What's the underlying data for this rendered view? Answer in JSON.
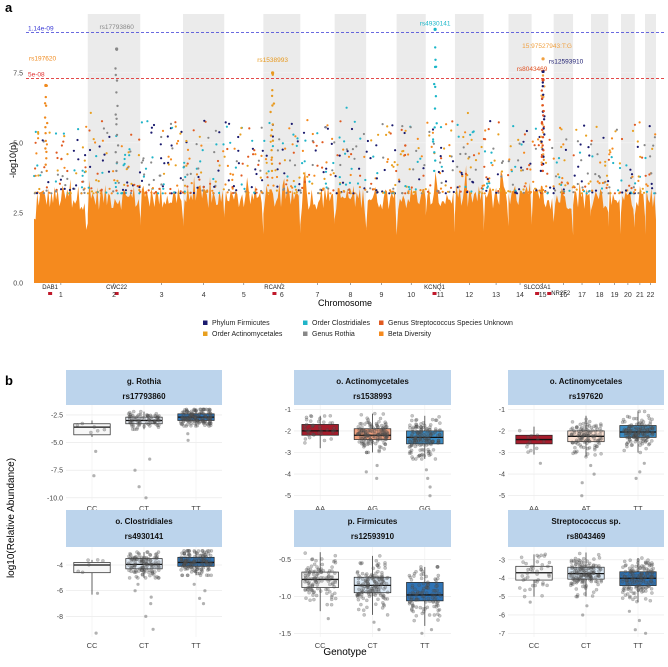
{
  "panel_a": {
    "label": "a",
    "chart_data": {
      "type": "scatter",
      "subtype": "manhattan",
      "xlabel": "Chromosome",
      "ylabel": "-log10(p)",
      "ylim": [
        0,
        9.6
      ],
      "yticks": [
        0.0,
        2.5,
        5.0,
        7.5
      ],
      "ytick_labels": [
        "0.0",
        "2.5",
        "5.0",
        "7.5"
      ],
      "chromosomes": [
        "1",
        "2",
        "3",
        "4",
        "5",
        "6",
        "7",
        "8",
        "9",
        "10",
        "11",
        "12",
        "13",
        "14",
        "15",
        "16",
        "17",
        "18",
        "19",
        "20",
        "21",
        "22"
      ],
      "thresholds": [
        {
          "label": "1.14e-09",
          "value": 8.94,
          "color": "#3a3ad6"
        },
        {
          "label": "5e-08",
          "value": 7.3,
          "color": "#e03030"
        }
      ],
      "peaks": [
        {
          "label": "rs17793860",
          "chromosome": "2",
          "value": 8.35,
          "color": "#888888"
        },
        {
          "label": "rs197620",
          "chromosome": "1",
          "value": 7.05,
          "color": "#f08a1e"
        },
        {
          "label": "rs1538993",
          "chromosome": "6",
          "value": 7.5,
          "color": "#e89a20"
        },
        {
          "label": "rs4930141",
          "chromosome": "11",
          "value": 9.05,
          "color": "#1ab6c8"
        },
        {
          "label": "15:97527943:T:G",
          "chromosome": "15",
          "value": 8.0,
          "color": "#f0a040"
        },
        {
          "label": "rs12593910",
          "chromosome": "15",
          "value": 7.55,
          "color": "#1a1a6e"
        },
        {
          "label": "rs8043469",
          "chromosome": "15",
          "value": 7.25,
          "color": "#e05020"
        }
      ],
      "genes": [
        {
          "label": "DAB1",
          "chromosome": "1"
        },
        {
          "label": "CWC22",
          "chromosome": "2"
        },
        {
          "label": "RCAN2",
          "chromosome": "6"
        },
        {
          "label": "KCNQ1",
          "chromosome": "11"
        },
        {
          "label": "SLCO3A1",
          "chromosome": "15"
        },
        {
          "label": "NR2F2",
          "chromosome": "15"
        }
      ],
      "series": [
        {
          "name": "Phylum Firmicutes",
          "color": "#1a1a6e"
        },
        {
          "name": "Order Actinomycetales",
          "color": "#e8a020"
        },
        {
          "name": "Order Clostridiales",
          "color": "#20b4c8"
        },
        {
          "name": "Genus Rothia",
          "color": "#888888"
        },
        {
          "name": "Genus Streptococcus Species Unknown",
          "color": "#e05a20"
        },
        {
          "name": "Beta Diversity",
          "color": "#f58a1e"
        }
      ]
    }
  },
  "panel_b": {
    "label": "b",
    "chart_data": {
      "type": "box",
      "xlabel": "Genotype",
      "ylabel": "log10(Relative Abundance)",
      "facets": [
        {
          "title": "g. Rothia",
          "snp": "rs17793860",
          "genotypes": [
            "CC",
            "CT",
            "TT"
          ],
          "ylim": [
            -10.2,
            -1.6
          ],
          "yticks": [
            -2.5,
            -5.0,
            -7.5,
            -10.0
          ],
          "ytick_labels": [
            "-2.5",
            "-5.0",
            "-7.5",
            "-10.0"
          ],
          "fills": [
            "#f7f7f7",
            "#e8edf3",
            "#2f74b6"
          ],
          "boxes": [
            {
              "q1": -4.3,
              "median": -3.6,
              "q3": -3.3,
              "lo": -4.5,
              "hi": -3.0
            },
            {
              "q1": -3.3,
              "median": -3.0,
              "q3": -2.7,
              "lo": -3.8,
              "hi": -2.2
            },
            {
              "q1": -3.0,
              "median": -2.7,
              "q3": -2.4,
              "lo": -3.5,
              "hi": -2.0
            }
          ],
          "outliers": [
            [
              -5.8,
              -8.0
            ],
            [
              -6.5,
              -7.5,
              -9.0,
              -10.0
            ],
            [
              -4.2,
              -4.8
            ]
          ],
          "n": [
            6,
            80,
            240
          ]
        },
        {
          "title": "o. Actinomycetales",
          "snp": "rs1538993",
          "genotypes": [
            "AA",
            "AG",
            "GG"
          ],
          "ylim": [
            -5.2,
            -0.8
          ],
          "yticks": [
            -1,
            -2,
            -3,
            -4,
            -5
          ],
          "ytick_labels": [
            "-1",
            "-2",
            "-3",
            "-4",
            "-5"
          ],
          "fills": [
            "#a61c2c",
            "#f0a07e",
            "#3c8cc4"
          ],
          "boxes": [
            {
              "q1": -2.2,
              "median": -2.0,
              "q3": -1.7,
              "lo": -2.8,
              "hi": -1.3
            },
            {
              "q1": -2.4,
              "median": -2.2,
              "q3": -1.9,
              "lo": -3.0,
              "hi": -1.2
            },
            {
              "q1": -2.6,
              "median": -2.3,
              "q3": -2.0,
              "lo": -3.3,
              "hi": -1.3
            }
          ],
          "outliers": [
            [],
            [
              -3.6,
              -3.9,
              -4.2
            ],
            [
              -3.8,
              -4.2,
              -4.6,
              -5.0
            ]
          ],
          "n": [
            40,
            140,
            190
          ]
        },
        {
          "title": "o. Actinomycetales",
          "snp": "rs197620",
          "genotypes": [
            "AA",
            "AT",
            "TT"
          ],
          "ylim": [
            -5.2,
            -0.8
          ],
          "yticks": [
            -1,
            -2,
            -3,
            -4,
            -5
          ],
          "ytick_labels": [
            "-1",
            "-2",
            "-3",
            "-4",
            "-5"
          ],
          "fills": [
            "#a61c2c",
            "#fbe1d3",
            "#3c8cc4"
          ],
          "boxes": [
            {
              "q1": -2.6,
              "median": -2.4,
              "q3": -2.2,
              "lo": -3.1,
              "hi": -1.8
            },
            {
              "q1": -2.5,
              "median": -2.25,
              "q3": -2.0,
              "lo": -3.2,
              "hi": -1.3
            },
            {
              "q1": -2.3,
              "median": -2.05,
              "q3": -1.75,
              "lo": -3.0,
              "hi": -1.1
            }
          ],
          "outliers": [
            [
              -3.5
            ],
            [
              -3.6,
              -4.0,
              -4.4,
              -5.0
            ],
            [
              -3.5,
              -3.9,
              -4.2
            ]
          ],
          "n": [
            12,
            110,
            230
          ]
        },
        {
          "title": "o. Clostridiales",
          "snp": "rs4930141",
          "genotypes": [
            "CC",
            "CT",
            "TT"
          ],
          "ylim": [
            -9.6,
            -2.6
          ],
          "yticks": [
            -4,
            -6,
            -8
          ],
          "ytick_labels": [
            "-4",
            "-6",
            "-8"
          ],
          "fills": [
            "#f7f7f7",
            "#dfe9f3",
            "#2f74b6"
          ],
          "boxes": [
            {
              "q1": -4.6,
              "median": -4.0,
              "q3": -3.8,
              "lo": -6.3,
              "hi": -3.6
            },
            {
              "q1": -4.3,
              "median": -3.95,
              "q3": -3.5,
              "lo": -5.0,
              "hi": -3.0
            },
            {
              "q1": -4.1,
              "median": -3.8,
              "q3": -3.4,
              "lo": -4.8,
              "hi": -2.9
            }
          ],
          "outliers": [
            [
              -6.2,
              -9.3
            ],
            [
              -5.5,
              -6.0,
              -6.5,
              -7.0,
              -8.0,
              -9.0
            ],
            [
              -5.5,
              -6.0,
              -6.6,
              -7.0
            ]
          ],
          "n": [
            6,
            120,
            240
          ]
        },
        {
          "title": "p. Firmicutes",
          "snp": "rs12593910",
          "genotypes": [
            "CC",
            "CT",
            "TT"
          ],
          "ylim": [
            -1.55,
            -0.33
          ],
          "yticks": [
            -0.5,
            -1.0,
            -1.5
          ],
          "ytick_labels": [
            "-0.5",
            "-1.0",
            "-1.5"
          ],
          "fills": [
            "#f7f7f7",
            "#dbe9f5",
            "#2f74b6"
          ],
          "boxes": [
            {
              "q1": -0.88,
              "median": -0.77,
              "q3": -0.67,
              "lo": -1.2,
              "hi": -0.4
            },
            {
              "q1": -0.95,
              "median": -0.85,
              "q3": -0.74,
              "lo": -1.25,
              "hi": -0.45
            },
            {
              "q1": -1.06,
              "median": -0.98,
              "q3": -0.81,
              "lo": -1.4,
              "hi": -0.6
            }
          ],
          "outliers": [
            [
              -1.3
            ],
            [
              -1.35,
              -1.45
            ],
            [
              -1.45,
              -1.5
            ]
          ],
          "n": [
            110,
            200,
            110
          ]
        },
        {
          "title": "Streptococcus sp.",
          "snp": "rs8043469",
          "genotypes": [
            "CC",
            "CT",
            "TT"
          ],
          "ylim": [
            -7.2,
            -2.3
          ],
          "yticks": [
            -3,
            -4,
            -5,
            -6,
            -7
          ],
          "ytick_labels": [
            "-3",
            "-4",
            "-5",
            "-6",
            "-7"
          ],
          "fills": [
            "#f7f7f7",
            "#dbe9f5",
            "#2f74b6"
          ],
          "boxes": [
            {
              "q1": -4.1,
              "median": -3.7,
              "q3": -3.35,
              "lo": -5.0,
              "hi": -2.7
            },
            {
              "q1": -4.05,
              "median": -3.75,
              "q3": -3.4,
              "lo": -5.0,
              "hi": -2.6
            },
            {
              "q1": -4.4,
              "median": -4.0,
              "q3": -3.65,
              "lo": -5.3,
              "hi": -2.9
            }
          ],
          "outliers": [
            [
              -5.3
            ],
            [
              -5.5,
              -6.0
            ],
            [
              -5.8,
              -6.3,
              -6.8,
              -7.0
            ]
          ],
          "n": [
            40,
            160,
            240
          ]
        }
      ]
    }
  }
}
